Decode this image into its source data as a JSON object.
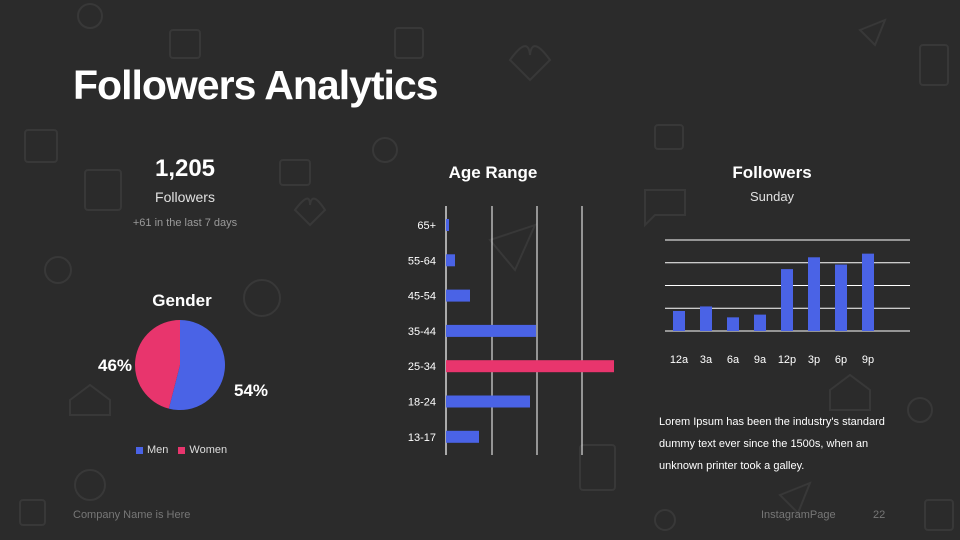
{
  "title": "Followers Analytics",
  "stats": {
    "count": "1,205",
    "label": "Followers",
    "sub": "+61 in the last 7 days"
  },
  "colors": {
    "blue": "#4a63e6",
    "pink": "#e8356d",
    "background": "#2b2b2b"
  },
  "chart_data": [
    {
      "type": "pie",
      "title": "Gender",
      "categories": [
        "Men",
        "Women"
      ],
      "values": [
        54,
        46
      ],
      "labels": [
        "54%",
        "46%"
      ]
    },
    {
      "type": "bar",
      "orientation": "horizontal",
      "title": "Age Range",
      "categories": [
        "65+",
        "55-64",
        "45-54",
        "35-44",
        "25-34",
        "18-24",
        "13-17"
      ],
      "values": [
        1,
        3,
        8,
        30,
        56,
        28,
        11
      ],
      "highlight": "25-34",
      "xlim": [
        0,
        60
      ],
      "grid": true
    },
    {
      "type": "bar",
      "title": "Followers",
      "subtitle": "Sunday",
      "categories": [
        "12a",
        "3a",
        "6a",
        "9a",
        "12p",
        "3p",
        "6p",
        "9p"
      ],
      "values": [
        22,
        27,
        15,
        18,
        68,
        81,
        73,
        85
      ],
      "ylim": [
        0,
        100
      ],
      "grid": true
    }
  ],
  "description": "Lorem Ipsum has been the industry's standard dummy text ever since the 1500s, when an unknown printer took a galley.",
  "footer": {
    "company": "Company Name is Here",
    "page_name": "InstagramPage",
    "page_number": "22"
  }
}
